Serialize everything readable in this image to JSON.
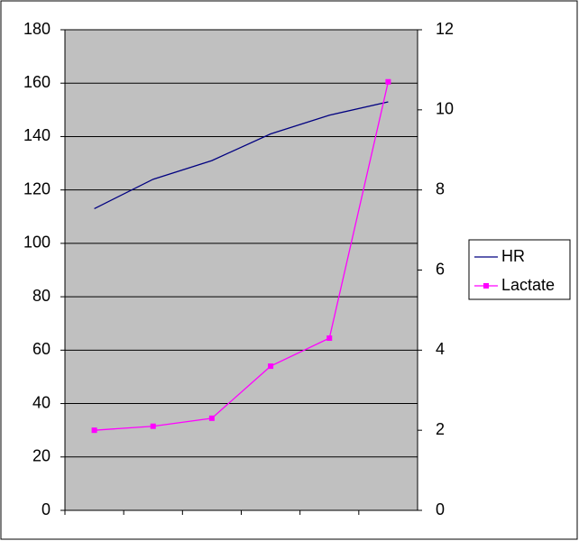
{
  "chart_data": {
    "type": "line",
    "categories": [
      null,
      null,
      null,
      null,
      null,
      null
    ],
    "series": [
      {
        "name": "HR",
        "color": "#000080",
        "values": [
          113,
          124,
          131,
          141,
          148,
          153
        ]
      },
      {
        "name": "Lactate",
        "color": "#ff00ff",
        "axis": "y2",
        "marker": "square",
        "values": [
          2.0,
          2.1,
          2.3,
          3.6,
          4.3,
          10.7
        ]
      }
    ],
    "ylim": [
      0,
      180
    ],
    "yticks": [
      0,
      20,
      40,
      60,
      80,
      100,
      120,
      140,
      160,
      180
    ],
    "y2lim": [
      0,
      12
    ],
    "y2ticks": [
      0,
      2,
      4,
      6,
      8,
      10,
      12
    ],
    "grid": true,
    "legend": "right",
    "plot_background": "#c0c0c0"
  }
}
